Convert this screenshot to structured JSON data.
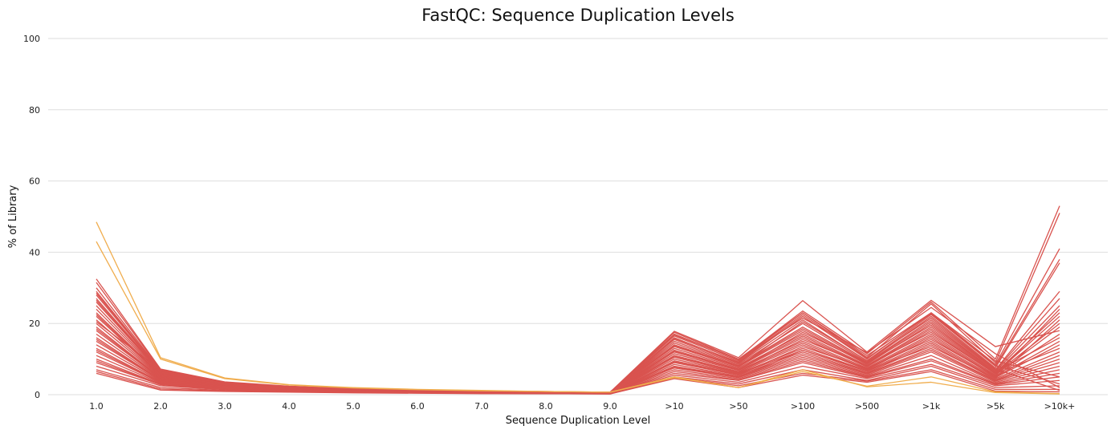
{
  "chart_data": {
    "type": "line",
    "title": "FastQC: Sequence Duplication Levels",
    "xlabel": "Sequence Duplication Level",
    "ylabel": "% of Library",
    "categories": [
      "1.0",
      "2.0",
      "3.0",
      "4.0",
      "5.0",
      "6.0",
      "7.0",
      "8.0",
      "9.0",
      ">10",
      ">50",
      ">100",
      ">500",
      ">1k",
      ">5k",
      ">10k+"
    ],
    "ylim": [
      0,
      100
    ],
    "yticks": [
      "0",
      "20",
      "40",
      "60",
      "80",
      "100"
    ],
    "grid": true,
    "colors": {
      "fail": "#d9534f",
      "warn": "#f0ad4e"
    },
    "series": [
      {
        "status": "warn",
        "values": [
          48.5,
          10.4,
          4.7,
          2.8,
          2.0,
          1.5,
          1.2,
          0.9,
          0.7,
          5.0,
          2.0,
          6.5,
          2.4,
          5.0,
          0.8,
          0.3
        ]
      },
      {
        "status": "warn",
        "values": [
          43.0,
          10.0,
          4.5,
          2.7,
          1.9,
          1.4,
          1.1,
          0.9,
          0.7,
          4.8,
          2.0,
          7.0,
          2.2,
          3.5,
          0.6,
          0.2
        ]
      },
      {
        "status": "fail",
        "values": [
          32.5,
          7.2,
          3.6,
          2.4,
          1.7,
          1.3,
          1.0,
          0.9,
          0.7,
          17.8,
          10.4,
          26.4,
          12.0,
          26.5,
          13.5,
          18.0
        ]
      },
      {
        "status": "fail",
        "values": [
          31.5,
          7.0,
          3.5,
          2.3,
          1.7,
          1.3,
          1.0,
          0.8,
          0.7,
          17.0,
          9.8,
          23.5,
          11.5,
          26.0,
          10.0,
          53.0
        ]
      },
      {
        "status": "fail",
        "values": [
          30.0,
          6.8,
          3.4,
          2.3,
          1.6,
          1.3,
          1.0,
          0.8,
          0.7,
          16.5,
          9.5,
          23.0,
          10.5,
          25.5,
          9.0,
          51.0
        ]
      },
      {
        "status": "fail",
        "values": [
          29.0,
          6.6,
          3.3,
          2.2,
          1.6,
          1.2,
          1.0,
          0.8,
          0.6,
          16.0,
          9.0,
          22.0,
          10.0,
          23.0,
          8.5,
          41.0
        ]
      },
      {
        "status": "fail",
        "values": [
          28.0,
          6.5,
          3.2,
          2.2,
          1.6,
          1.2,
          0.9,
          0.8,
          0.6,
          15.5,
          8.8,
          21.0,
          9.5,
          22.5,
          8.0,
          38.0
        ]
      },
      {
        "status": "fail",
        "values": [
          27.0,
          6.4,
          3.2,
          2.1,
          1.5,
          1.2,
          0.9,
          0.8,
          0.6,
          15.0,
          8.5,
          20.0,
          9.2,
          22.0,
          7.5,
          37.0
        ]
      },
      {
        "status": "fail",
        "values": [
          26.0,
          6.2,
          3.1,
          2.1,
          1.5,
          1.2,
          0.9,
          0.7,
          0.6,
          14.5,
          8.2,
          19.0,
          9.0,
          21.0,
          7.0,
          29.0
        ]
      },
      {
        "status": "fail",
        "values": [
          25.0,
          6.0,
          3.0,
          2.0,
          1.5,
          1.1,
          0.9,
          0.7,
          0.6,
          14.0,
          8.0,
          18.5,
          8.8,
          20.5,
          6.8,
          27.0
        ]
      },
      {
        "status": "fail",
        "values": [
          24.0,
          5.8,
          3.0,
          2.0,
          1.4,
          1.1,
          0.9,
          0.7,
          0.6,
          13.5,
          7.8,
          18.0,
          8.5,
          20.0,
          6.5,
          25.0
        ]
      },
      {
        "status": "fail",
        "values": [
          23.0,
          5.6,
          2.9,
          1.9,
          1.4,
          1.1,
          0.8,
          0.7,
          0.5,
          13.0,
          7.5,
          17.0,
          8.2,
          19.0,
          6.2,
          23.0
        ]
      },
      {
        "status": "fail",
        "values": [
          22.0,
          5.4,
          2.8,
          1.9,
          1.4,
          1.0,
          0.8,
          0.7,
          0.5,
          12.5,
          7.2,
          16.5,
          8.0,
          18.5,
          6.0,
          22.0
        ]
      },
      {
        "status": "fail",
        "values": [
          21.0,
          5.2,
          2.7,
          1.8,
          1.3,
          1.0,
          0.8,
          0.6,
          0.5,
          12.0,
          7.0,
          16.0,
          7.8,
          18.0,
          5.8,
          20.0
        ]
      },
      {
        "status": "fail",
        "values": [
          20.0,
          5.0,
          2.6,
          1.8,
          1.3,
          1.0,
          0.8,
          0.6,
          0.5,
          11.5,
          6.8,
          15.0,
          7.5,
          17.0,
          5.5,
          19.0
        ]
      },
      {
        "status": "fail",
        "values": [
          19.0,
          4.8,
          2.5,
          1.7,
          1.3,
          1.0,
          0.8,
          0.6,
          0.5,
          11.0,
          6.5,
          14.5,
          7.2,
          16.5,
          5.2,
          17.0
        ]
      },
      {
        "status": "fail",
        "values": [
          18.0,
          4.6,
          2.4,
          1.7,
          1.2,
          0.9,
          0.7,
          0.6,
          0.5,
          10.5,
          6.2,
          14.0,
          7.0,
          16.0,
          5.0,
          15.0
        ]
      },
      {
        "status": "fail",
        "values": [
          17.0,
          4.4,
          2.3,
          1.6,
          1.2,
          0.9,
          0.7,
          0.6,
          0.5,
          10.0,
          6.0,
          13.0,
          6.8,
          15.0,
          4.8,
          14.0
        ]
      },
      {
        "status": "fail",
        "values": [
          16.0,
          4.2,
          2.2,
          1.6,
          1.2,
          0.9,
          0.7,
          0.6,
          0.4,
          9.5,
          5.8,
          12.5,
          6.5,
          14.5,
          4.5,
          12.0
        ]
      },
      {
        "status": "fail",
        "values": [
          15.0,
          4.0,
          2.1,
          1.5,
          1.1,
          0.9,
          0.7,
          0.5,
          0.4,
          9.0,
          5.5,
          12.0,
          6.2,
          14.0,
          4.2,
          11.0
        ]
      },
      {
        "status": "fail",
        "values": [
          14.0,
          3.8,
          2.0,
          1.4,
          1.1,
          0.8,
          0.7,
          0.5,
          0.4,
          8.5,
          5.2,
          11.5,
          6.0,
          13.0,
          4.0,
          10.0
        ]
      },
      {
        "status": "fail",
        "values": [
          13.0,
          3.6,
          1.9,
          1.4,
          1.0,
          0.8,
          0.6,
          0.5,
          0.4,
          8.0,
          5.0,
          11.0,
          5.8,
          12.5,
          3.8,
          9.0
        ]
      },
      {
        "status": "fail",
        "values": [
          12.0,
          3.4,
          1.8,
          1.3,
          1.0,
          0.8,
          0.6,
          0.5,
          0.4,
          7.5,
          4.8,
          10.5,
          5.5,
          12.0,
          3.5,
          8.0
        ]
      },
      {
        "status": "fail",
        "values": [
          11.0,
          3.2,
          1.7,
          1.2,
          0.9,
          0.7,
          0.6,
          0.5,
          0.4,
          7.0,
          4.5,
          10.0,
          5.2,
          11.0,
          3.2,
          7.0
        ]
      },
      {
        "status": "fail",
        "values": [
          10.0,
          3.0,
          1.6,
          1.2,
          0.9,
          0.7,
          0.6,
          0.4,
          0.3,
          6.5,
          4.2,
          9.5,
          5.0,
          10.0,
          3.0,
          6.0
        ]
      },
      {
        "status": "fail",
        "values": [
          9.0,
          2.8,
          1.5,
          1.1,
          0.8,
          0.6,
          0.5,
          0.4,
          0.3,
          6.0,
          4.0,
          9.0,
          4.8,
          9.5,
          2.8,
          5.0
        ]
      },
      {
        "status": "fail",
        "values": [
          8.0,
          2.5,
          1.4,
          1.0,
          0.8,
          0.6,
          0.5,
          0.4,
          0.3,
          5.5,
          3.5,
          8.0,
          4.5,
          8.5,
          2.5,
          4.0
        ]
      },
      {
        "status": "fail",
        "values": [
          7.0,
          2.0,
          1.2,
          0.9,
          0.7,
          0.5,
          0.4,
          0.3,
          0.3,
          5.0,
          3.0,
          7.0,
          4.0,
          8.0,
          2.0,
          2.5
        ]
      },
      {
        "status": "fail",
        "values": [
          6.5,
          1.6,
          1.0,
          0.8,
          0.6,
          0.5,
          0.4,
          0.3,
          0.2,
          4.8,
          2.5,
          6.0,
          3.8,
          7.0,
          1.5,
          1.5
        ]
      },
      {
        "status": "fail",
        "values": [
          6.0,
          1.3,
          0.9,
          0.7,
          0.5,
          0.4,
          0.3,
          0.3,
          0.2,
          4.5,
          2.0,
          5.5,
          3.5,
          6.5,
          1.0,
          0.8
        ]
      },
      {
        "status": "fail",
        "values": [
          20.5,
          6.9,
          3.4,
          2.2,
          1.6,
          1.2,
          1.0,
          0.8,
          0.6,
          17.5,
          10.0,
          23.0,
          11.0,
          23.0,
          9.5,
          5.0
        ]
      },
      {
        "status": "fail",
        "values": [
          26.5,
          6.3,
          3.1,
          2.1,
          1.5,
          1.2,
          0.9,
          0.7,
          0.6,
          15.8,
          9.2,
          22.5,
          10.2,
          22.8,
          8.2,
          3.0
        ]
      },
      {
        "status": "fail",
        "values": [
          22.5,
          5.5,
          2.8,
          1.9,
          1.4,
          1.0,
          0.8,
          0.7,
          0.5,
          13.8,
          7.9,
          20.5,
          9.6,
          21.5,
          7.2,
          1.2
        ]
      },
      {
        "status": "fail",
        "values": [
          18.5,
          4.7,
          2.4,
          1.7,
          1.2,
          0.9,
          0.7,
          0.6,
          0.5,
          12.2,
          7.0,
          17.5,
          8.8,
          19.5,
          6.4,
          16.0
        ]
      },
      {
        "status": "fail",
        "values": [
          15.5,
          4.1,
          2.2,
          1.5,
          1.1,
          0.9,
          0.7,
          0.5,
          0.4,
          10.8,
          6.4,
          15.5,
          8.2,
          17.5,
          5.9,
          13.0
        ]
      },
      {
        "status": "fail",
        "values": [
          12.5,
          3.5,
          1.9,
          1.3,
          1.0,
          0.8,
          0.6,
          0.5,
          0.4,
          9.2,
          5.6,
          13.5,
          7.4,
          15.5,
          5.3,
          24.0
        ]
      },
      {
        "status": "fail",
        "values": [
          9.5,
          2.9,
          1.6,
          1.1,
          0.8,
          0.7,
          0.5,
          0.4,
          0.3,
          7.8,
          4.9,
          12.5,
          6.8,
          13.5,
          4.6,
          21.0
        ]
      },
      {
        "status": "fail",
        "values": [
          28.5,
          6.7,
          3.3,
          2.2,
          1.6,
          1.2,
          1.0,
          0.8,
          0.6,
          16.8,
          9.9,
          21.5,
          11.8,
          24.5,
          11.5,
          2.0
        ]
      }
    ]
  }
}
